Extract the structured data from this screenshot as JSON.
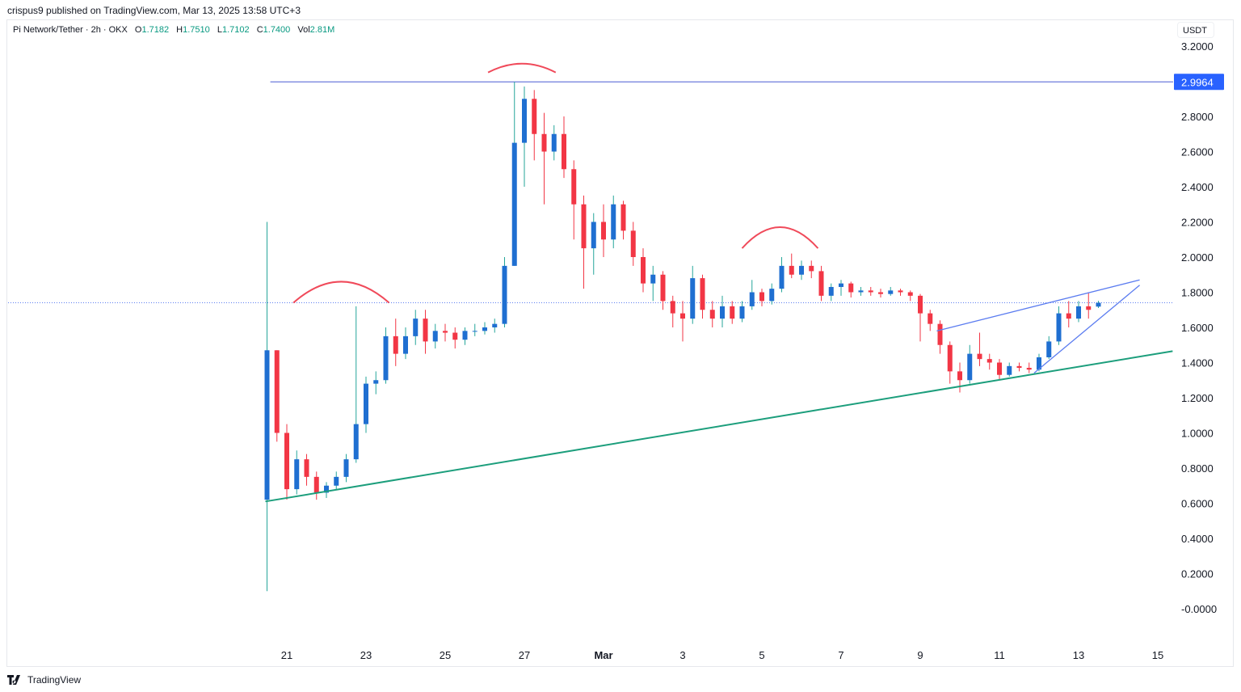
{
  "header": {
    "publisher_line": "crispus9 published on TradingView.com, Mar 13, 2025 13:58 UTC+3"
  },
  "legend": {
    "symbol": "Pi Network/Tether · 2h · OKX",
    "open_label": "O",
    "open": "1.7182",
    "high_label": "H",
    "high": "1.7510",
    "low_label": "L",
    "low": "1.7102",
    "close_label": "C",
    "close": "1.7400",
    "vol_label": "Vol",
    "vol": "2.81M"
  },
  "currency_label": "USDT",
  "footer": {
    "brand": "TradingView",
    "logo_icon": "tradingview-logo-icon"
  },
  "colors": {
    "up_body": "#1f6fd1",
    "up_wick": "#26a69a",
    "down": "#f23645",
    "horizontal_line": "#4a5bd4",
    "trendline": "#1c9e7c",
    "wedge": "#5b7cf0",
    "arcs": "#f04a5a",
    "price_tag": "#2962ff"
  },
  "chart_data": {
    "type": "candlestick",
    "title": "",
    "xlabel": "",
    "ylabel": "",
    "ylim": [
      -0.1,
      3.3
    ],
    "y_ticks": [
      "3.2000",
      "2.8000",
      "2.6000",
      "2.4000",
      "2.2000",
      "2.0000",
      "1.8000",
      "1.6000",
      "1.4000",
      "1.2000",
      "1.0000",
      "0.8000",
      "0.6000",
      "0.4000",
      "0.2000",
      "-0.0000"
    ],
    "y_tick_values": [
      3.2,
      2.8,
      2.6,
      2.4,
      2.2,
      2.0,
      1.8,
      1.6,
      1.4,
      1.2,
      1.0,
      0.8,
      0.6,
      0.4,
      0.2,
      0.0
    ],
    "x_ticks": [
      {
        "label": "21",
        "date": "2025-02-21"
      },
      {
        "label": "23",
        "date": "2025-02-23"
      },
      {
        "label": "25",
        "date": "2025-02-25"
      },
      {
        "label": "27",
        "date": "2025-02-27"
      },
      {
        "label": "Mar",
        "date": "2025-03-01"
      },
      {
        "label": "3",
        "date": "2025-03-03"
      },
      {
        "label": "5",
        "date": "2025-03-05"
      },
      {
        "label": "7",
        "date": "2025-03-07"
      },
      {
        "label": "9",
        "date": "2025-03-09"
      },
      {
        "label": "11",
        "date": "2025-03-11"
      },
      {
        "label": "13",
        "date": "2025-03-13"
      },
      {
        "label": "15",
        "date": "2025-03-15"
      }
    ],
    "candle_start": "2025-02-20T12:00",
    "candle_interval_hours": 6,
    "candles_ohlc": [
      [
        0.62,
        2.2,
        0.1,
        1.47
      ],
      [
        1.47,
        1.47,
        0.95,
        1.0
      ],
      [
        1.0,
        1.05,
        0.62,
        0.68
      ],
      [
        0.68,
        0.9,
        0.65,
        0.85
      ],
      [
        0.85,
        0.88,
        0.7,
        0.75
      ],
      [
        0.75,
        0.78,
        0.62,
        0.66
      ],
      [
        0.66,
        0.72,
        0.63,
        0.7
      ],
      [
        0.7,
        0.78,
        0.68,
        0.75
      ],
      [
        0.75,
        0.88,
        0.72,
        0.85
      ],
      [
        0.85,
        1.72,
        0.83,
        1.05
      ],
      [
        1.05,
        1.32,
        1.0,
        1.28
      ],
      [
        1.28,
        1.35,
        1.22,
        1.3
      ],
      [
        1.3,
        1.6,
        1.28,
        1.55
      ],
      [
        1.55,
        1.65,
        1.38,
        1.45
      ],
      [
        1.45,
        1.6,
        1.42,
        1.55
      ],
      [
        1.55,
        1.7,
        1.5,
        1.65
      ],
      [
        1.65,
        1.7,
        1.45,
        1.52
      ],
      [
        1.52,
        1.62,
        1.48,
        1.58
      ],
      [
        1.58,
        1.62,
        1.52,
        1.57
      ],
      [
        1.57,
        1.6,
        1.48,
        1.53
      ],
      [
        1.53,
        1.6,
        1.5,
        1.58
      ],
      [
        1.58,
        1.62,
        1.55,
        1.58
      ],
      [
        1.58,
        1.63,
        1.56,
        1.6
      ],
      [
        1.6,
        1.65,
        1.57,
        1.62
      ],
      [
        1.62,
        2.0,
        1.6,
        1.95
      ],
      [
        1.95,
        2.9964,
        1.95,
        2.65
      ],
      [
        2.65,
        2.97,
        2.4,
        2.9
      ],
      [
        2.9,
        2.95,
        2.55,
        2.7
      ],
      [
        2.7,
        2.82,
        2.3,
        2.6
      ],
      [
        2.6,
        2.75,
        2.55,
        2.7
      ],
      [
        2.7,
        2.8,
        2.45,
        2.5
      ],
      [
        2.5,
        2.55,
        2.1,
        2.3
      ],
      [
        2.3,
        2.35,
        1.82,
        2.05
      ],
      [
        2.05,
        2.25,
        1.9,
        2.2
      ],
      [
        2.2,
        2.3,
        2.0,
        2.1
      ],
      [
        2.1,
        2.35,
        2.05,
        2.3
      ],
      [
        2.3,
        2.32,
        2.1,
        2.15
      ],
      [
        2.15,
        2.2,
        1.95,
        2.0
      ],
      [
        2.0,
        2.05,
        1.8,
        1.85
      ],
      [
        1.85,
        1.95,
        1.75,
        1.9
      ],
      [
        1.9,
        1.92,
        1.7,
        1.75
      ],
      [
        1.75,
        1.78,
        1.6,
        1.68
      ],
      [
        1.68,
        1.75,
        1.52,
        1.65
      ],
      [
        1.65,
        1.95,
        1.62,
        1.88
      ],
      [
        1.88,
        1.9,
        1.65,
        1.7
      ],
      [
        1.7,
        1.75,
        1.6,
        1.65
      ],
      [
        1.65,
        1.78,
        1.6,
        1.72
      ],
      [
        1.72,
        1.75,
        1.62,
        1.65
      ],
      [
        1.65,
        1.75,
        1.63,
        1.72
      ],
      [
        1.72,
        1.87,
        1.7,
        1.8
      ],
      [
        1.8,
        1.82,
        1.72,
        1.75
      ],
      [
        1.75,
        1.85,
        1.73,
        1.82
      ],
      [
        1.82,
        2.0,
        1.8,
        1.95
      ],
      [
        1.95,
        2.02,
        1.88,
        1.9
      ],
      [
        1.9,
        1.98,
        1.87,
        1.95
      ],
      [
        1.95,
        1.98,
        1.88,
        1.92
      ],
      [
        1.92,
        1.95,
        1.75,
        1.78
      ],
      [
        1.78,
        1.85,
        1.75,
        1.83
      ],
      [
        1.83,
        1.87,
        1.78,
        1.85
      ],
      [
        1.85,
        1.86,
        1.77,
        1.8
      ],
      [
        1.8,
        1.83,
        1.78,
        1.81
      ],
      [
        1.81,
        1.83,
        1.78,
        1.8
      ],
      [
        1.8,
        1.82,
        1.77,
        1.79
      ],
      [
        1.79,
        1.83,
        1.78,
        1.81
      ],
      [
        1.81,
        1.82,
        1.78,
        1.8
      ],
      [
        1.8,
        1.81,
        1.75,
        1.78
      ],
      [
        1.78,
        1.79,
        1.52,
        1.68
      ],
      [
        1.68,
        1.7,
        1.58,
        1.62
      ],
      [
        1.62,
        1.64,
        1.45,
        1.5
      ],
      [
        1.5,
        1.52,
        1.28,
        1.35
      ],
      [
        1.35,
        1.4,
        1.23,
        1.3
      ],
      [
        1.3,
        1.5,
        1.28,
        1.45
      ],
      [
        1.45,
        1.57,
        1.38,
        1.42
      ],
      [
        1.42,
        1.45,
        1.36,
        1.4
      ],
      [
        1.4,
        1.42,
        1.3,
        1.33
      ],
      [
        1.33,
        1.4,
        1.32,
        1.38
      ],
      [
        1.38,
        1.4,
        1.35,
        1.37
      ],
      [
        1.37,
        1.4,
        1.34,
        1.36
      ],
      [
        1.36,
        1.45,
        1.35,
        1.43
      ],
      [
        1.43,
        1.55,
        1.42,
        1.52
      ],
      [
        1.52,
        1.72,
        1.5,
        1.68
      ],
      [
        1.68,
        1.75,
        1.6,
        1.65
      ],
      [
        1.65,
        1.75,
        1.63,
        1.72
      ],
      [
        1.72,
        1.8,
        1.65,
        1.7
      ],
      [
        1.7182,
        1.751,
        1.7102,
        1.74
      ]
    ],
    "last_price": 1.74,
    "drawings": {
      "horizontal_level": {
        "price": 2.9964,
        "label": "2.9964",
        "from": "2025-02-20T14:00"
      },
      "support_trendline": {
        "from": [
          "2025-02-20T11:00",
          0.61
        ],
        "to": [
          "2025-03-15T09:00",
          1.465
        ]
      },
      "wedge_upper": {
        "from": [
          "2025-03-09T10:00",
          1.58
        ],
        "to": [
          "2025-03-14T13:00",
          1.87
        ]
      },
      "wedge_lower": {
        "from": [
          "2025-03-11T21:00",
          1.34
        ],
        "to": [
          "2025-03-14T13:00",
          1.84
        ]
      },
      "arcs": [
        {
          "from": "2025-02-21T04:00",
          "to": "2025-02-23T14:00",
          "base": 1.74,
          "peak": 1.86
        },
        {
          "from": "2025-02-26T02:00",
          "to": "2025-02-27T19:00",
          "base": 3.05,
          "peak": 3.1
        },
        {
          "from": "2025-03-04T12:00",
          "to": "2025-03-06T10:00",
          "base": 2.05,
          "peak": 2.17
        }
      ]
    }
  }
}
